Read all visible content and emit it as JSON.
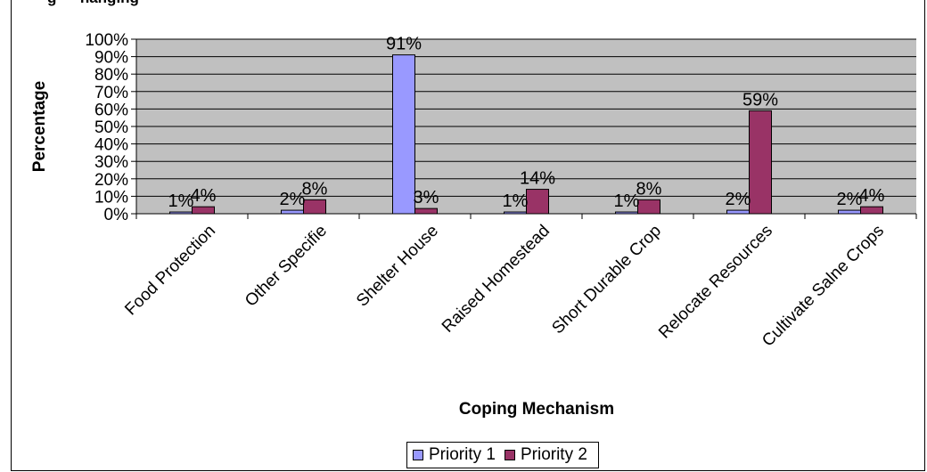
{
  "caption_cut": "g — hanging",
  "chart_data": {
    "type": "bar",
    "title": "",
    "xlabel": "Coping Mechanism",
    "ylabel": "Percentage",
    "ylim": [
      0,
      100
    ],
    "yticks": [
      "0%",
      "10%",
      "20%",
      "30%",
      "40%",
      "50%",
      "60%",
      "70%",
      "80%",
      "90%",
      "100%"
    ],
    "categories": [
      "Food Protection",
      "Other Specifie",
      "Shelter House",
      "Raised Homestead",
      "Short Durable Crop",
      "Relocate Resources",
      "Cultivate Salne Crops"
    ],
    "series": [
      {
        "name": "Priority 1",
        "color": "#9999ff",
        "values": [
          1,
          2,
          91,
          1,
          1,
          2,
          2
        ],
        "labels": [
          "1%",
          "2%",
          "91%",
          "1%",
          "1%",
          "2%",
          "2%"
        ]
      },
      {
        "name": "Priority 2",
        "color": "#993366",
        "values": [
          4,
          8,
          3,
          14,
          8,
          59,
          4
        ],
        "labels": [
          "4%",
          "8%",
          "3%",
          "14%",
          "8%",
          "59%",
          "4%"
        ]
      }
    ],
    "plot_background": "#c0c0c0",
    "grid": true,
    "legend_position": "bottom"
  }
}
